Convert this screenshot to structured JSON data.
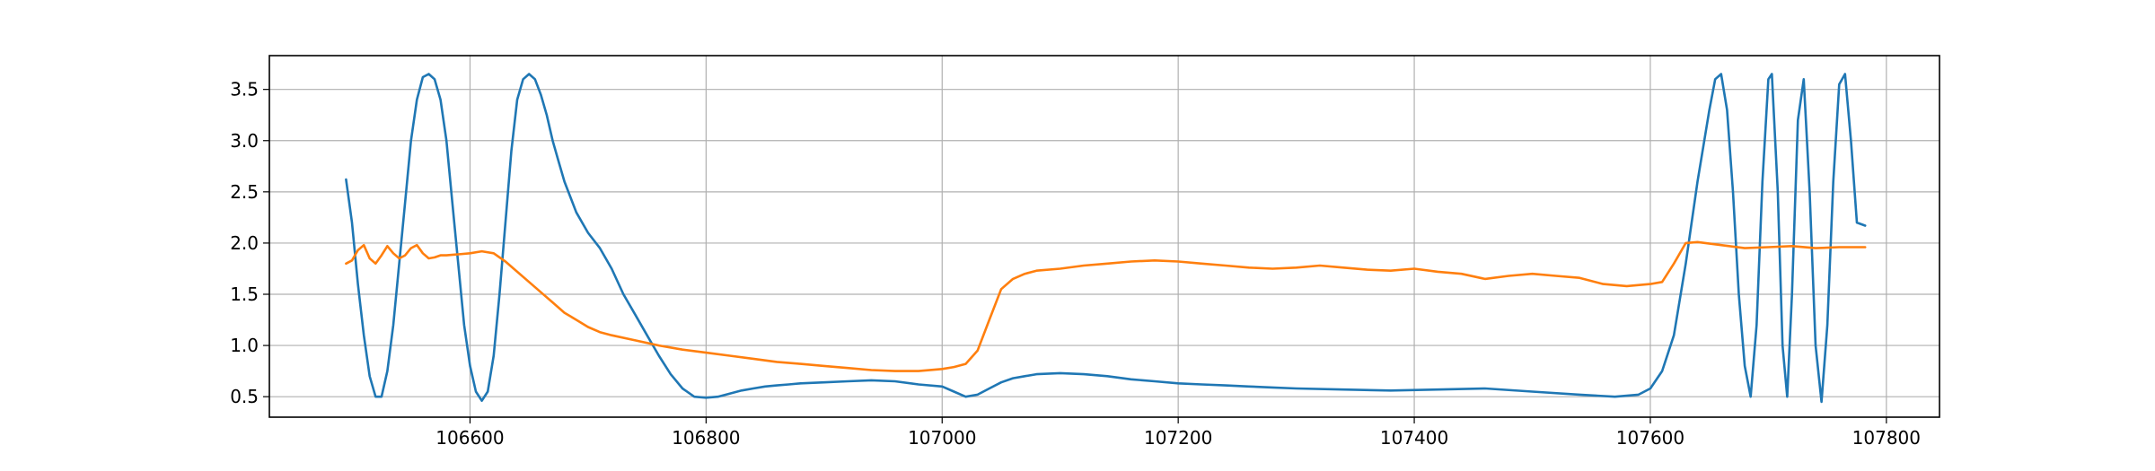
{
  "chart_data": {
    "type": "line",
    "title": "",
    "xlabel": "",
    "ylabel": "",
    "xlim": [
      106430,
      107845
    ],
    "ylim": [
      0.3,
      3.83
    ],
    "grid": true,
    "x_ticks": [
      106600,
      106800,
      107000,
      107200,
      107400,
      107600,
      107800
    ],
    "x_tick_labels": [
      "106600",
      "106800",
      "107000",
      "107200",
      "107400",
      "107600",
      "107800"
    ],
    "y_ticks": [
      0.5,
      1.0,
      1.5,
      2.0,
      2.5,
      3.0,
      3.5
    ],
    "y_tick_labels": [
      "0.5",
      "1.0",
      "1.5",
      "2.0",
      "2.5",
      "3.0",
      "3.5"
    ],
    "series": [
      {
        "color": "#1f77b4",
        "x": [
          106495,
          106500,
          106505,
          106510,
          106515,
          106520,
          106525,
          106530,
          106535,
          106540,
          106545,
          106550,
          106555,
          106560,
          106565,
          106570,
          106575,
          106580,
          106585,
          106590,
          106595,
          106600,
          106605,
          106610,
          106615,
          106620,
          106625,
          106630,
          106635,
          106640,
          106645,
          106650,
          106655,
          106660,
          106665,
          106670,
          106675,
          106680,
          106685,
          106690,
          106700,
          106710,
          106720,
          106730,
          106740,
          106750,
          106760,
          106770,
          106780,
          106790,
          106800,
          106810,
          106820,
          106830,
          106840,
          106850,
          106860,
          106870,
          106880,
          106900,
          106920,
          106940,
          106960,
          106980,
          107000,
          107010,
          107020,
          107030,
          107040,
          107050,
          107060,
          107070,
          107080,
          107100,
          107120,
          107140,
          107160,
          107180,
          107200,
          107220,
          107240,
          107260,
          107280,
          107300,
          107340,
          107380,
          107420,
          107460,
          107500,
          107540,
          107570,
          107590,
          107600,
          107610,
          107620,
          107630,
          107640,
          107650,
          107655,
          107660,
          107665,
          107670,
          107675,
          107680,
          107685,
          107690,
          107695,
          107700,
          107703,
          107708,
          107712,
          107716,
          107720,
          107725,
          107730,
          107735,
          107740,
          107745,
          107750,
          107755,
          107760,
          107765,
          107770,
          107775,
          107782
        ],
        "y": [
          2.62,
          2.2,
          1.6,
          1.1,
          0.7,
          0.5,
          0.5,
          0.75,
          1.2,
          1.8,
          2.4,
          3.0,
          3.4,
          3.62,
          3.65,
          3.6,
          3.4,
          3.0,
          2.4,
          1.8,
          1.2,
          0.8,
          0.55,
          0.46,
          0.55,
          0.9,
          1.5,
          2.2,
          2.9,
          3.4,
          3.6,
          3.65,
          3.6,
          3.45,
          3.25,
          3.0,
          2.8,
          2.6,
          2.45,
          2.3,
          2.1,
          1.95,
          1.75,
          1.5,
          1.3,
          1.1,
          0.9,
          0.72,
          0.58,
          0.5,
          0.49,
          0.5,
          0.53,
          0.56,
          0.58,
          0.6,
          0.61,
          0.62,
          0.63,
          0.64,
          0.65,
          0.66,
          0.65,
          0.62,
          0.6,
          0.55,
          0.5,
          0.52,
          0.58,
          0.64,
          0.68,
          0.7,
          0.72,
          0.73,
          0.72,
          0.7,
          0.67,
          0.65,
          0.63,
          0.62,
          0.61,
          0.6,
          0.59,
          0.58,
          0.57,
          0.56,
          0.57,
          0.58,
          0.55,
          0.52,
          0.5,
          0.52,
          0.58,
          0.75,
          1.1,
          1.8,
          2.6,
          3.3,
          3.6,
          3.65,
          3.3,
          2.5,
          1.5,
          0.8,
          0.5,
          1.2,
          2.6,
          3.6,
          3.65,
          2.5,
          1.0,
          0.5,
          1.5,
          3.2,
          3.6,
          2.5,
          1.0,
          0.45,
          1.2,
          2.6,
          3.55,
          3.65,
          3.0,
          2.2,
          2.17
        ]
      },
      {
        "color": "#ff7f0e",
        "x": [
          106495,
          106500,
          106505,
          106510,
          106515,
          106520,
          106525,
          106530,
          106535,
          106540,
          106545,
          106550,
          106555,
          106560,
          106565,
          106570,
          106575,
          106580,
          106590,
          106600,
          106610,
          106620,
          106630,
          106640,
          106650,
          106660,
          106670,
          106680,
          106690,
          106700,
          106710,
          106720,
          106740,
          106760,
          106780,
          106800,
          106820,
          106840,
          106860,
          106880,
          106900,
          106920,
          106940,
          106960,
          106980,
          107000,
          107010,
          107020,
          107030,
          107040,
          107050,
          107060,
          107070,
          107080,
          107100,
          107120,
          107140,
          107160,
          107180,
          107200,
          107220,
          107240,
          107260,
          107280,
          107300,
          107320,
          107340,
          107360,
          107380,
          107400,
          107420,
          107440,
          107460,
          107480,
          107500,
          107520,
          107540,
          107560,
          107580,
          107600,
          107610,
          107620,
          107630,
          107640,
          107660,
          107680,
          107700,
          107720,
          107740,
          107760,
          107782
        ],
        "y": [
          1.8,
          1.83,
          1.93,
          1.98,
          1.85,
          1.8,
          1.88,
          1.97,
          1.9,
          1.85,
          1.88,
          1.95,
          1.98,
          1.9,
          1.85,
          1.86,
          1.88,
          1.88,
          1.89,
          1.9,
          1.92,
          1.9,
          1.82,
          1.72,
          1.62,
          1.52,
          1.42,
          1.32,
          1.25,
          1.18,
          1.13,
          1.1,
          1.05,
          1.0,
          0.96,
          0.93,
          0.9,
          0.87,
          0.84,
          0.82,
          0.8,
          0.78,
          0.76,
          0.75,
          0.75,
          0.77,
          0.79,
          0.82,
          0.95,
          1.25,
          1.55,
          1.65,
          1.7,
          1.73,
          1.75,
          1.78,
          1.8,
          1.82,
          1.83,
          1.82,
          1.8,
          1.78,
          1.76,
          1.75,
          1.76,
          1.78,
          1.76,
          1.74,
          1.73,
          1.75,
          1.72,
          1.7,
          1.65,
          1.68,
          1.7,
          1.68,
          1.66,
          1.6,
          1.58,
          1.6,
          1.62,
          1.8,
          2.0,
          2.01,
          1.98,
          1.95,
          1.96,
          1.97,
          1.95,
          1.96,
          1.96
        ]
      }
    ]
  }
}
